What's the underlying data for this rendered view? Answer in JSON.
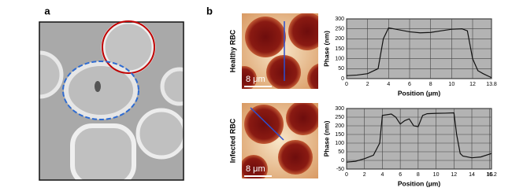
{
  "panel_a": {
    "label": "a"
  },
  "panel_b": {
    "label": "b",
    "rows": [
      {
        "label": "Healthy RBC",
        "scale": "8 μm"
      },
      {
        "label": "Infected RBC",
        "scale": "8 μm"
      }
    ]
  },
  "chart_data": [
    {
      "type": "line",
      "ylabel": "Phase (nm)",
      "xlabel": "Position (μm)",
      "x": [
        0,
        1,
        2,
        3,
        3.5,
        4,
        5,
        6,
        7,
        8,
        9,
        10,
        11,
        11.5,
        12,
        12.5,
        13,
        13.8
      ],
      "series": [
        {
          "color": "#111111",
          "values": [
            15,
            18,
            25,
            50,
            200,
            255,
            245,
            235,
            230,
            232,
            240,
            248,
            250,
            240,
            100,
            40,
            25,
            5
          ]
        }
      ],
      "xlim": [
        0,
        13.8
      ],
      "ylim": [
        0,
        300
      ],
      "xticks": [
        0,
        2,
        4,
        6,
        8,
        10,
        12,
        13.8
      ],
      "yticks": [
        0,
        50,
        100,
        150,
        200,
        250,
        300
      ],
      "grid": true
    },
    {
      "type": "line",
      "ylabel": "Phase (nm)",
      "xlabel": "Position (μm)",
      "x": [
        0,
        1,
        2,
        3,
        3.7,
        4,
        5,
        5.5,
        6,
        6.5,
        7,
        7.5,
        8,
        8.5,
        9,
        10,
        11,
        12,
        12.3,
        12.7,
        13,
        14,
        15,
        16.2
      ],
      "series": [
        {
          "color": "#111111",
          "values": [
            -10,
            -5,
            10,
            30,
            100,
            260,
            268,
            250,
            210,
            230,
            240,
            200,
            195,
            260,
            270,
            272,
            273,
            275,
            150,
            40,
            25,
            15,
            20,
            40
          ]
        }
      ],
      "xlim": [
        0,
        16.2
      ],
      "ylim": [
        -50,
        300
      ],
      "xticks": [
        0,
        2,
        4,
        6,
        8,
        10,
        12,
        14,
        16,
        16.2
      ],
      "yticks": [
        -50,
        0,
        50,
        100,
        150,
        200,
        250,
        300
      ],
      "grid": true
    }
  ]
}
